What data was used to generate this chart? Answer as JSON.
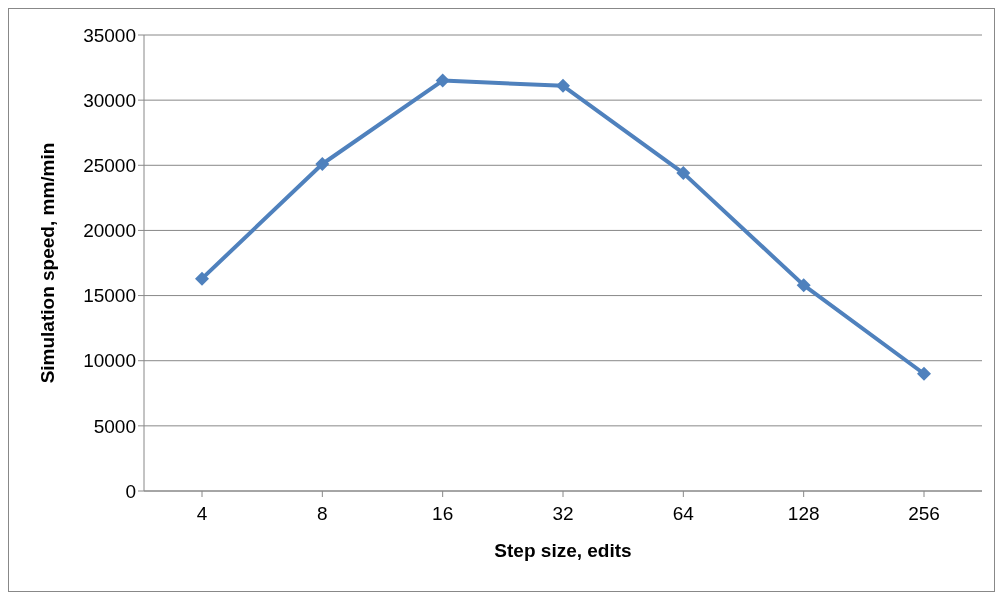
{
  "chart_data": {
    "type": "line",
    "xlabel": "Step size, edits",
    "ylabel": "Simulation speed, mm/min",
    "categories": [
      "4",
      "8",
      "16",
      "32",
      "64",
      "128",
      "256"
    ],
    "series": [
      {
        "color": "#4f81bd",
        "values": [
          16300,
          25100,
          31500,
          31100,
          24400,
          15800,
          9000
        ]
      }
    ],
    "ylim": [
      0,
      35000
    ],
    "yticks": [
      0,
      5000,
      10000,
      15000,
      20000,
      25000,
      30000,
      35000
    ],
    "grid": "y",
    "legend": false,
    "marker": "diamond",
    "line_style": "solid"
  }
}
